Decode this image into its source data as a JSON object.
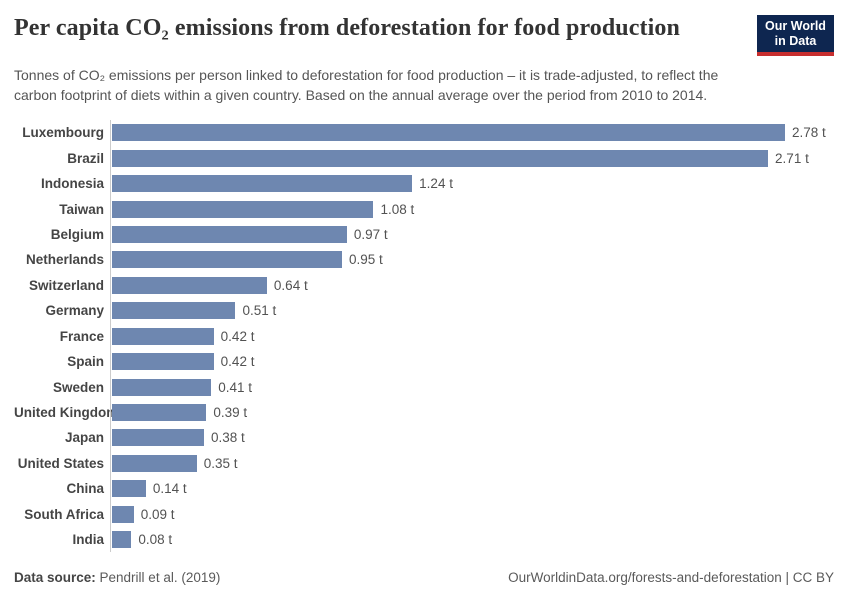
{
  "header": {
    "title": "Per capita CO₂ emissions from deforestation for food production",
    "subtitle": "Tonnes of CO₂ emissions per person linked to deforestation for food production – it is trade-adjusted, to reflect the carbon footprint of diets within a given country. Based on the annual average over the period from 2010 to 2014.",
    "logo": {
      "line1": "Our World",
      "line2": "in Data",
      "bg_color": "#0e2650",
      "stripe_color": "#c72e2e"
    }
  },
  "chart_data": {
    "type": "bar",
    "orientation": "horizontal",
    "title": "Per capita CO₂ emissions from deforestation for food production",
    "unit": "tonnes per person",
    "unit_suffix": " t",
    "bar_color": "#6e87b0",
    "axis_line_color": "#cccccc",
    "xlim": [
      0,
      2.78
    ],
    "grid": false,
    "legend": "none",
    "categories": [
      "Luxembourg",
      "Brazil",
      "Indonesia",
      "Taiwan",
      "Belgium",
      "Netherlands",
      "Switzerland",
      "Germany",
      "France",
      "Spain",
      "Sweden",
      "United Kingdom",
      "Japan",
      "United States",
      "China",
      "South Africa",
      "India"
    ],
    "values": [
      2.78,
      2.71,
      1.24,
      1.08,
      0.97,
      0.95,
      0.64,
      0.51,
      0.42,
      0.42,
      0.41,
      0.39,
      0.38,
      0.35,
      0.14,
      0.09,
      0.08
    ],
    "display_values": [
      "2.78 t",
      "2.71 t",
      "1.24 t",
      "1.08 t",
      "0.97 t",
      "0.95 t",
      "0.64 t",
      "0.51 t",
      "0.42 t",
      "0.42 t",
      "0.41 t",
      "0.39 t",
      "0.38 t",
      "0.35 t",
      "0.14 t",
      "0.09 t",
      "0.08 t"
    ]
  },
  "footer": {
    "source_label": "Data source:",
    "source_value": " Pendrill et al. (2019)",
    "link": "OurWorldinData.org/forests-and-deforestation | CC BY"
  }
}
